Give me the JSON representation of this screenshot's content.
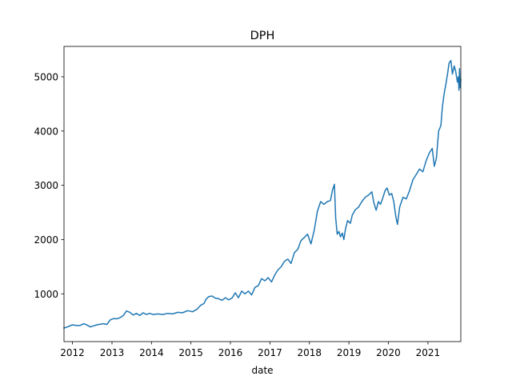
{
  "chart_data": {
    "type": "line",
    "title": "DPH",
    "xlabel": "date",
    "ylabel": "",
    "xlim": [
      "2011-10-15",
      "2021-11-01"
    ],
    "ylim": [
      120,
      5560
    ],
    "xticks": [
      {
        "date": "2012-01-01",
        "label": "2012"
      },
      {
        "date": "2013-01-01",
        "label": "2013"
      },
      {
        "date": "2014-01-01",
        "label": "2014"
      },
      {
        "date": "2015-01-01",
        "label": "2015"
      },
      {
        "date": "2016-01-01",
        "label": "2016"
      },
      {
        "date": "2017-01-01",
        "label": "2017"
      },
      {
        "date": "2018-01-01",
        "label": "2018"
      },
      {
        "date": "2019-01-01",
        "label": "2019"
      },
      {
        "date": "2020-01-01",
        "label": "2020"
      },
      {
        "date": "2021-01-01",
        "label": "2021"
      }
    ],
    "yticks": [
      {
        "value": 1000,
        "label": "1000"
      },
      {
        "value": 2000,
        "label": "2000"
      },
      {
        "value": 3000,
        "label": "3000"
      },
      {
        "value": 4000,
        "label": "4000"
      },
      {
        "value": 5000,
        "label": "5000"
      }
    ],
    "grid": false,
    "color": "#1f77b4",
    "series": [
      {
        "x": [
          "2011-10-15",
          "2011-11-15",
          "2012-01-01",
          "2012-02-15",
          "2012-03-15",
          "2012-04-15",
          "2012-05-15",
          "2012-06-15",
          "2012-07-15",
          "2012-08-15",
          "2012-09-15",
          "2012-10-15",
          "2012-11-15",
          "2012-12-15",
          "2013-01-15",
          "2013-02-15",
          "2013-03-15",
          "2013-04-15",
          "2013-05-15",
          "2013-06-15",
          "2013-07-15",
          "2013-08-15",
          "2013-09-15",
          "2013-10-15",
          "2013-11-15",
          "2013-12-15",
          "2014-01-15",
          "2014-03-01",
          "2014-04-15",
          "2014-06-01",
          "2014-07-15",
          "2014-09-01",
          "2014-10-15",
          "2014-12-01",
          "2015-01-15",
          "2015-03-01",
          "2015-04-01",
          "2015-05-01",
          "2015-05-20",
          "2015-06-15",
          "2015-07-15",
          "2015-08-15",
          "2015-09-15",
          "2015-10-15",
          "2015-11-15",
          "2015-12-15",
          "2016-01-15",
          "2016-02-15",
          "2016-03-15",
          "2016-04-15",
          "2016-05-15",
          "2016-06-15",
          "2016-07-15",
          "2016-08-15",
          "2016-09-15",
          "2016-10-15",
          "2016-11-15",
          "2016-12-15",
          "2017-01-15",
          "2017-02-15",
          "2017-03-15",
          "2017-04-15",
          "2017-05-15",
          "2017-06-15",
          "2017-07-15",
          "2017-08-15",
          "2017-09-15",
          "2017-10-15",
          "2017-11-15",
          "2017-12-15",
          "2018-01-15",
          "2018-02-15",
          "2018-03-15",
          "2018-04-15",
          "2018-05-15",
          "2018-06-15",
          "2018-07-15",
          "2018-08-01",
          "2018-08-20",
          "2018-09-01",
          "2018-09-15",
          "2018-10-01",
          "2018-10-15",
          "2018-11-01",
          "2018-11-15",
          "2018-12-01",
          "2018-12-20",
          "2019-01-15",
          "2019-02-01",
          "2019-03-01",
          "2019-04-01",
          "2019-05-01",
          "2019-06-01",
          "2019-07-01",
          "2019-08-01",
          "2019-08-20",
          "2019-09-10",
          "2019-10-01",
          "2019-10-20",
          "2019-11-10",
          "2019-12-01",
          "2019-12-20",
          "2020-01-10",
          "2020-02-01",
          "2020-02-20",
          "2020-03-10",
          "2020-03-25",
          "2020-04-15",
          "2020-05-15",
          "2020-06-15",
          "2020-07-15",
          "2020-08-15",
          "2020-09-15",
          "2020-10-15",
          "2020-11-15",
          "2020-12-15",
          "2021-01-15",
          "2021-02-10",
          "2021-03-01",
          "2021-03-20",
          "2021-04-10",
          "2021-05-01",
          "2021-05-15",
          "2021-06-01",
          "2021-06-15",
          "2021-07-01",
          "2021-07-15",
          "2021-08-01",
          "2021-08-15",
          "2021-09-01",
          "2021-09-15",
          "2021-10-01",
          "2021-10-10",
          "2021-10-15",
          "2021-10-20",
          "2021-10-25",
          "2021-11-01"
        ],
        "y": [
          370,
          390,
          430,
          415,
          420,
          450,
          425,
          390,
          410,
          430,
          440,
          450,
          435,
          520,
          545,
          540,
          560,
          600,
          685,
          660,
          610,
          640,
          600,
          650,
          620,
          640,
          620,
          630,
          620,
          640,
          630,
          660,
          650,
          690,
          670,
          720,
          790,
          820,
          900,
          950,
          960,
          920,
          910,
          880,
          930,
          890,
          920,
          1020,
          930,
          1050,
          1000,
          1050,
          980,
          1120,
          1150,
          1280,
          1240,
          1300,
          1220,
          1350,
          1440,
          1500,
          1600,
          1640,
          1560,
          1760,
          1820,
          1980,
          2040,
          2100,
          1920,
          2180,
          2520,
          2700,
          2650,
          2700,
          2720,
          2900,
          3020,
          2400,
          2100,
          2150,
          2050,
          2120,
          2000,
          2200,
          2350,
          2300,
          2450,
          2550,
          2600,
          2700,
          2780,
          2820,
          2880,
          2680,
          2540,
          2700,
          2650,
          2760,
          2900,
          2950,
          2820,
          2850,
          2700,
          2420,
          2280,
          2600,
          2780,
          2750,
          2900,
          3100,
          3200,
          3300,
          3250,
          3450,
          3600,
          3680,
          3350,
          3500,
          4000,
          4100,
          4450,
          4700,
          4850,
          5050,
          5250,
          5300,
          5050,
          5200,
          5100,
          4900,
          5000,
          4750,
          5150,
          4800,
          4950
        ]
      }
    ]
  }
}
